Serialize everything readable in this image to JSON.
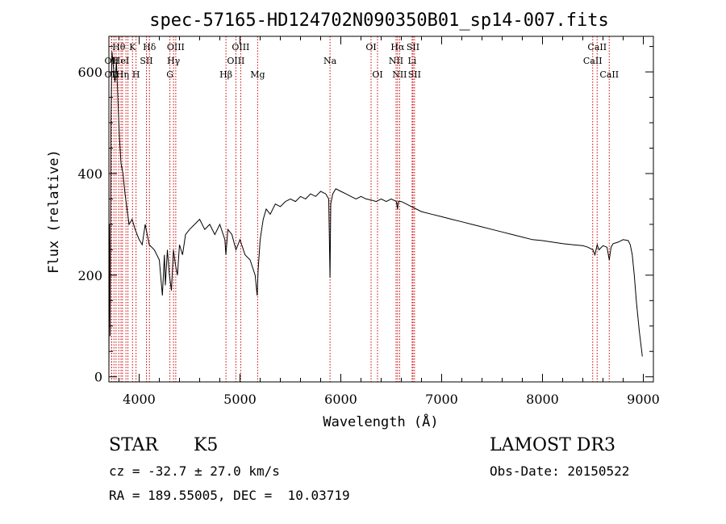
{
  "chart_data": {
    "type": "line",
    "title": "spec-57165-HD124702N090350B01_sp14-007.fits",
    "xlabel": "Wavelength (Å)",
    "ylabel": "Flux (relative)",
    "xlim": [
      3700,
      9100
    ],
    "ylim": [
      -10,
      670
    ],
    "x_ticks": [
      4000,
      5000,
      6000,
      7000,
      8000,
      9000
    ],
    "y_ticks": [
      0,
      200,
      400,
      600
    ],
    "series": [
      {
        "name": "spectrum",
        "color": "#000000",
        "x": [
          3700,
          3705,
          3712,
          3720,
          3730,
          3745,
          3760,
          3775,
          3790,
          3805,
          3820,
          3840,
          3860,
          3880,
          3900,
          3930,
          3960,
          4000,
          4030,
          4060,
          4100,
          4150,
          4200,
          4230,
          4250,
          4260,
          4280,
          4300,
          4320,
          4340,
          4360,
          4380,
          4400,
          4430,
          4460,
          4500,
          4550,
          4600,
          4650,
          4700,
          4750,
          4800,
          4850,
          4860,
          4880,
          4920,
          4960,
          5000,
          5050,
          5100,
          5150,
          5170,
          5180,
          5200,
          5230,
          5260,
          5300,
          5350,
          5400,
          5450,
          5500,
          5550,
          5600,
          5650,
          5700,
          5750,
          5800,
          5850,
          5880,
          5893,
          5900,
          5920,
          5950,
          6000,
          6050,
          6100,
          6150,
          6200,
          6250,
          6300,
          6350,
          6400,
          6450,
          6500,
          6550,
          6563,
          6570,
          6600,
          6650,
          6700,
          6750,
          6800,
          6900,
          7000,
          7100,
          7200,
          7300,
          7400,
          7500,
          7600,
          7700,
          7800,
          7900,
          8000,
          8100,
          8200,
          8300,
          8400,
          8450,
          8500,
          8520,
          8542,
          8560,
          8600,
          8640,
          8662,
          8680,
          8700,
          8750,
          8800,
          8850,
          8870,
          8890,
          8910,
          8930,
          8960,
          8990
        ],
        "y": [
          5,
          300,
          80,
          500,
          640,
          610,
          580,
          620,
          540,
          470,
          420,
          400,
          360,
          330,
          300,
          310,
          290,
          270,
          260,
          300,
          260,
          250,
          230,
          160,
          240,
          180,
          250,
          200,
          170,
          250,
          220,
          200,
          260,
          240,
          280,
          290,
          300,
          310,
          290,
          300,
          280,
          300,
          270,
          240,
          290,
          280,
          250,
          270,
          240,
          230,
          200,
          160,
          210,
          270,
          310,
          330,
          320,
          340,
          335,
          345,
          350,
          345,
          355,
          350,
          360,
          355,
          365,
          360,
          350,
          195,
          340,
          360,
          370,
          365,
          360,
          355,
          350,
          355,
          350,
          348,
          345,
          350,
          345,
          350,
          345,
          330,
          345,
          345,
          340,
          335,
          330,
          325,
          320,
          315,
          310,
          305,
          300,
          295,
          290,
          285,
          280,
          275,
          270,
          268,
          265,
          262,
          260,
          258,
          255,
          250,
          240,
          260,
          250,
          258,
          255,
          230,
          255,
          262,
          265,
          270,
          268,
          260,
          240,
          200,
          150,
          90,
          40
        ]
      }
    ],
    "lines": [
      {
        "wl": 3727,
        "label": "OII",
        "row": 1
      },
      {
        "wl": 3727,
        "label": "OII",
        "row": 2
      },
      {
        "wl": 3750,
        "label": "",
        "row": 0
      },
      {
        "wl": 3771,
        "label": "",
        "row": 0
      },
      {
        "wl": 3798,
        "label": "Hθ",
        "row": 0
      },
      {
        "wl": 3820,
        "label": "HeI",
        "row": 1
      },
      {
        "wl": 3835,
        "label": "Hη",
        "row": 2
      },
      {
        "wl": 3869,
        "label": "",
        "row": 0
      },
      {
        "wl": 3889,
        "label": "",
        "row": 0
      },
      {
        "wl": 3934,
        "label": "K",
        "row": 0
      },
      {
        "wl": 3969,
        "label": "H",
        "row": 2
      },
      {
        "wl": 4072,
        "label": "SII",
        "row": 1
      },
      {
        "wl": 4102,
        "label": "Hδ",
        "row": 0
      },
      {
        "wl": 4305,
        "label": "G",
        "row": 2
      },
      {
        "wl": 4341,
        "label": "Hγ",
        "row": 1
      },
      {
        "wl": 4363,
        "label": "OIII",
        "row": 0
      },
      {
        "wl": 4861,
        "label": "Hβ",
        "row": 2
      },
      {
        "wl": 4959,
        "label": "OIII",
        "row": 1
      },
      {
        "wl": 5007,
        "label": "OIII",
        "row": 0
      },
      {
        "wl": 5175,
        "label": "Mg",
        "row": 2
      },
      {
        "wl": 5893,
        "label": "Na",
        "row": 1
      },
      {
        "wl": 6300,
        "label": "OI",
        "row": 0
      },
      {
        "wl": 6364,
        "label": "OI",
        "row": 2
      },
      {
        "wl": 6548,
        "label": "NII",
        "row": 1
      },
      {
        "wl": 6563,
        "label": "Hα",
        "row": 0
      },
      {
        "wl": 6583,
        "label": "NII",
        "row": 2
      },
      {
        "wl": 6707,
        "label": "Li",
        "row": 1
      },
      {
        "wl": 6716,
        "label": "SII",
        "row": 0
      },
      {
        "wl": 6731,
        "label": "SII",
        "row": 2
      },
      {
        "wl": 8498,
        "label": "CaII",
        "row": 1
      },
      {
        "wl": 8542,
        "label": "CaII",
        "row": 0
      },
      {
        "wl": 8662,
        "label": "CaII",
        "row": 2
      }
    ]
  },
  "info": {
    "class_label": "STAR",
    "subclass": "K5",
    "survey": "LAMOST DR3",
    "cz": "cz = -32.7 ± 27.0 km/s",
    "obs_date": "Obs-Date: 20150522",
    "coords": "RA = 189.55005, DEC =  10.03719"
  }
}
